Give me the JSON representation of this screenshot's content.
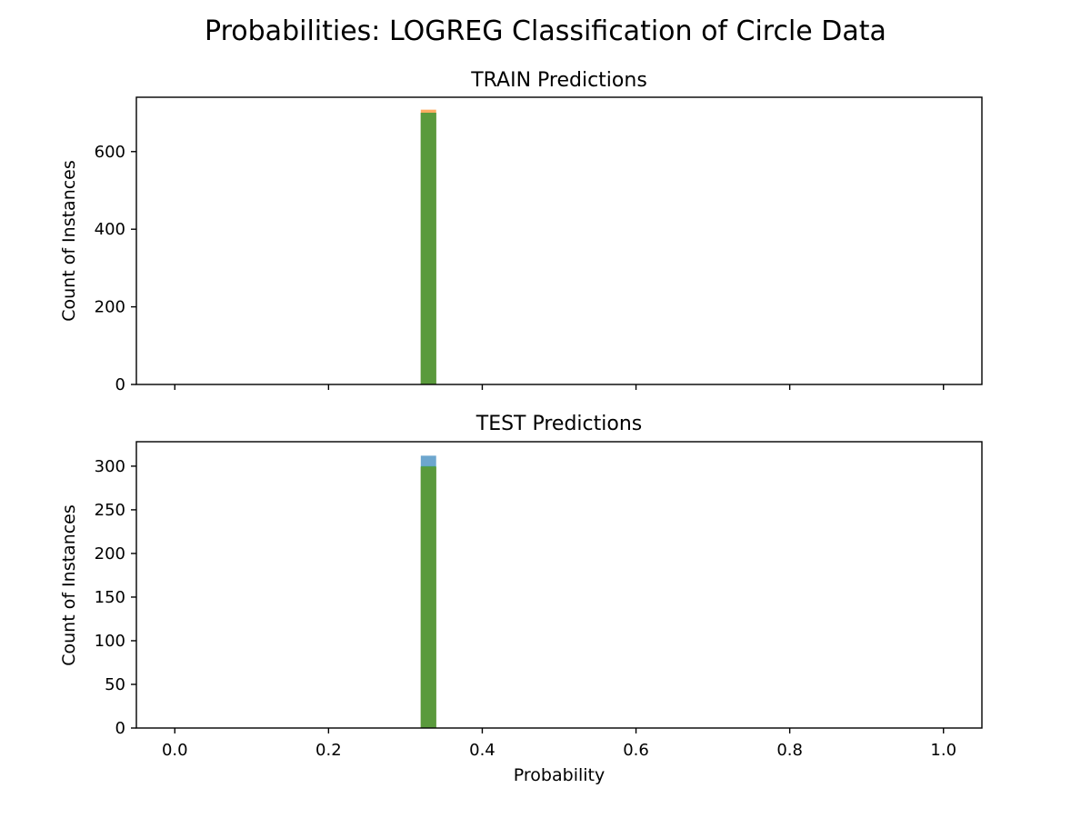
{
  "figure": {
    "suptitle": "Probabilities:  LOGREG Classification of Circle Data"
  },
  "chart_data": [
    {
      "type": "bar",
      "title": "TRAIN Predictions",
      "xlabel": "",
      "ylabel": "Count of Instances",
      "xlim": [
        -0.05,
        1.05
      ],
      "ylim": [
        0,
        740
      ],
      "xticks": [
        0.0,
        0.2,
        0.4,
        0.6,
        0.8,
        1.0
      ],
      "xtick_labels": [],
      "yticks": [
        0,
        200,
        400,
        600
      ],
      "ytick_labels": [
        "0",
        "200",
        "400",
        "600"
      ],
      "bin": [
        0.32,
        0.34
      ],
      "series": [
        {
          "color": "#1f77b4",
          "values": [
            700
          ]
        },
        {
          "color": "#ff7f0e",
          "values": [
            708
          ]
        },
        {
          "color": "#2ca02c",
          "values": [
            700
          ]
        }
      ],
      "overlap_color": "#5a9a3c",
      "grid": false
    },
    {
      "type": "bar",
      "title": "TEST Predictions",
      "xlabel": "Probability",
      "ylabel": "Count of Instances",
      "xlim": [
        -0.05,
        1.05
      ],
      "ylim": [
        0,
        328
      ],
      "xticks": [
        0.0,
        0.2,
        0.4,
        0.6,
        0.8,
        1.0
      ],
      "xtick_labels": [
        "0.0",
        "0.2",
        "0.4",
        "0.6",
        "0.8",
        "1.0"
      ],
      "yticks": [
        0,
        50,
        100,
        150,
        200,
        250,
        300
      ],
      "ytick_labels": [
        "0",
        "50",
        "100",
        "150",
        "200",
        "250",
        "300"
      ],
      "bin": [
        0.32,
        0.34
      ],
      "series": [
        {
          "color": "#1f77b4",
          "values": [
            312
          ]
        },
        {
          "color": "#ff7f0e",
          "values": [
            299
          ]
        },
        {
          "color": "#2ca02c",
          "values": [
            300
          ]
        }
      ],
      "overlap_color": "#5a9a3c",
      "grid": false
    }
  ]
}
